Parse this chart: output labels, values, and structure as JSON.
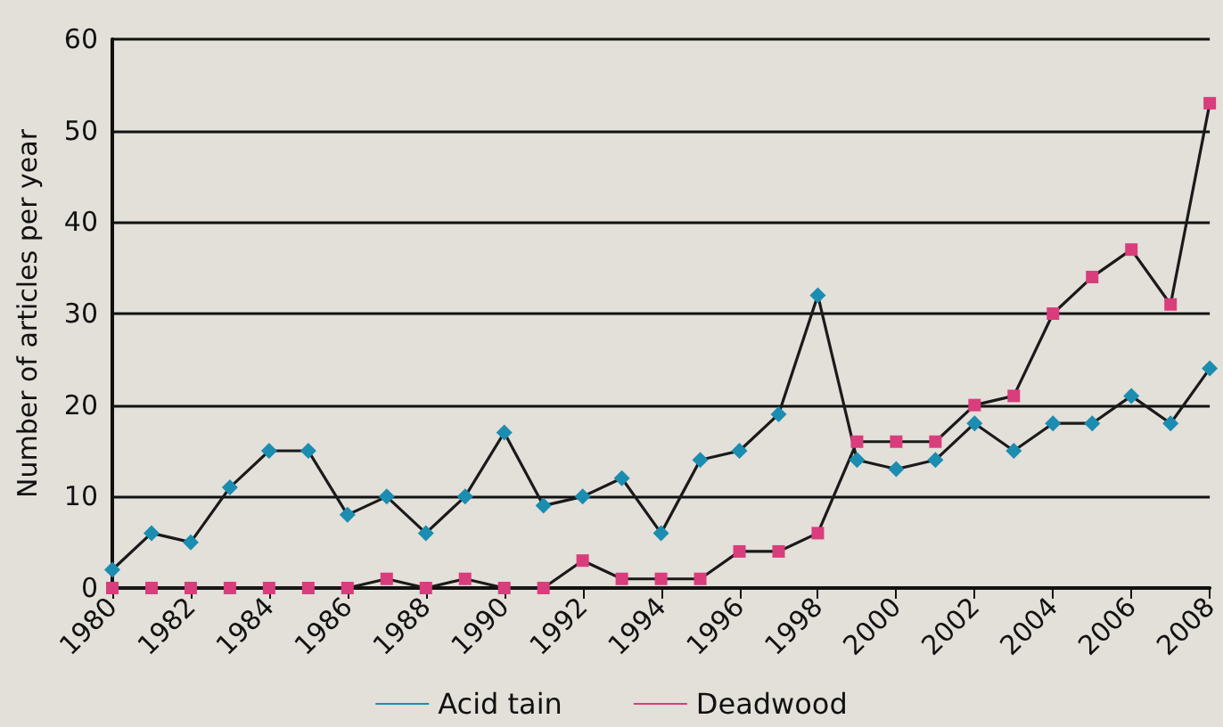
{
  "chart_data": {
    "type": "line",
    "ylabel": "Number of articles per year",
    "x": [
      1980,
      1981,
      1982,
      1983,
      1984,
      1985,
      1986,
      1987,
      1988,
      1989,
      1990,
      1991,
      1992,
      1993,
      1994,
      1995,
      1996,
      1997,
      1998,
      1999,
      2000,
      2001,
      2002,
      2003,
      2004,
      2005,
      2006,
      2007,
      2008
    ],
    "series": [
      {
        "name": "Acid tain",
        "color": "#1a8db0",
        "marker": "diamond",
        "values": [
          2,
          6,
          5,
          11,
          15,
          15,
          8,
          10,
          6,
          10,
          17,
          9,
          10,
          12,
          6,
          14,
          15,
          19,
          32,
          14,
          13,
          14,
          18,
          15,
          18,
          18,
          21,
          18,
          24
        ]
      },
      {
        "name": "Deadwood",
        "color": "#d93d7c",
        "marker": "square",
        "values": [
          0,
          0,
          0,
          0,
          0,
          0,
          0,
          1,
          0,
          1,
          0,
          0,
          3,
          1,
          1,
          1,
          4,
          4,
          6,
          16,
          16,
          16,
          20,
          21,
          30,
          34,
          37,
          31,
          53
        ]
      }
    ],
    "xlim": [
      1980,
      2008
    ],
    "xticks": [
      1980,
      1982,
      1984,
      1986,
      1988,
      1990,
      1992,
      1994,
      1996,
      1998,
      2000,
      2002,
      2004,
      2006,
      2008
    ],
    "ylim": [
      0,
      60
    ],
    "yticks": [
      0,
      10,
      20,
      30,
      40,
      50,
      60
    ],
    "grid": "y",
    "legend": "bottom",
    "line_style": "solid"
  }
}
